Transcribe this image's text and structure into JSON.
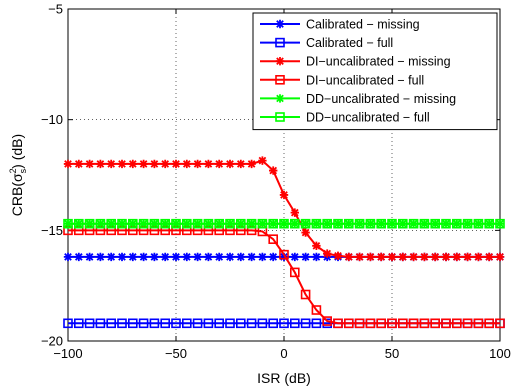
{
  "chart_data": {
    "type": "line",
    "xlabel": "ISR (dB)",
    "ylabel_main": "CRB(σ",
    "ylabel_sup": "2",
    "ylabel_sub": "s",
    "ylabel_tail": ") (dB)",
    "xlim": [
      -100,
      100
    ],
    "ylim": [
      -20,
      -5
    ],
    "xticks": [
      -100,
      -50,
      0,
      50,
      100
    ],
    "yticks": [
      -20,
      -15,
      -10,
      -5
    ],
    "xtick_labels": [
      "−100",
      "−50",
      "0",
      "50",
      "100"
    ],
    "ytick_labels": [
      "−20",
      "−15",
      "−10",
      "−5"
    ],
    "grid": true,
    "legend_position": "top-right",
    "x": [
      -100,
      -95,
      -90,
      -85,
      -80,
      -75,
      -70,
      -65,
      -60,
      -55,
      -50,
      -45,
      -40,
      -35,
      -30,
      -25,
      -20,
      -15,
      -10,
      -5,
      0,
      5,
      10,
      15,
      20,
      25,
      30,
      35,
      40,
      45,
      50,
      55,
      60,
      65,
      70,
      75,
      80,
      85,
      90,
      95,
      100
    ],
    "series": [
      {
        "name": "Calibrated − missing",
        "color": "#0000ff",
        "marker": "star",
        "values": [
          -16.2,
          -16.2,
          -16.2,
          -16.2,
          -16.2,
          -16.2,
          -16.2,
          -16.2,
          -16.2,
          -16.2,
          -16.2,
          -16.2,
          -16.2,
          -16.2,
          -16.2,
          -16.2,
          -16.2,
          -16.2,
          -16.2,
          -16.2,
          -16.2,
          -16.2,
          -16.2,
          -16.2,
          -16.2,
          -16.2,
          -16.2,
          -16.2,
          -16.2,
          -16.2,
          -16.2,
          -16.2,
          -16.2,
          -16.2,
          -16.2,
          -16.2,
          -16.2,
          -16.2,
          -16.2,
          -16.2,
          -16.2
        ]
      },
      {
        "name": "Calibrated − full",
        "color": "#0000ff",
        "marker": "square",
        "values": [
          -19.2,
          -19.2,
          -19.2,
          -19.2,
          -19.2,
          -19.2,
          -19.2,
          -19.2,
          -19.2,
          -19.2,
          -19.2,
          -19.2,
          -19.2,
          -19.2,
          -19.2,
          -19.2,
          -19.2,
          -19.2,
          -19.2,
          -19.2,
          -19.2,
          -19.2,
          -19.2,
          -19.2,
          -19.2,
          -19.2,
          -19.2,
          -19.2,
          -19.2,
          -19.2,
          -19.2,
          -19.2,
          -19.2,
          -19.2,
          -19.2,
          -19.2,
          -19.2,
          -19.2,
          -19.2,
          -19.2,
          -19.2
        ]
      },
      {
        "name": "DI−uncalibrated − missing",
        "color": "#ff0000",
        "marker": "star",
        "values": [
          -12.0,
          -12.0,
          -12.0,
          -12.0,
          -12.0,
          -12.0,
          -12.0,
          -12.0,
          -12.0,
          -12.0,
          -12.0,
          -12.0,
          -12.0,
          -12.0,
          -12.0,
          -12.0,
          -12.0,
          -12.0,
          -11.85,
          -12.3,
          -13.4,
          -14.2,
          -15.1,
          -15.7,
          -16.05,
          -16.15,
          -16.2,
          -16.2,
          -16.2,
          -16.2,
          -16.2,
          -16.2,
          -16.2,
          -16.2,
          -16.2,
          -16.2,
          -16.2,
          -16.2,
          -16.2,
          -16.2,
          -16.2
        ]
      },
      {
        "name": "DI−uncalibrated − full",
        "color": "#ff0000",
        "marker": "square",
        "values": [
          -15.0,
          -15.0,
          -15.0,
          -15.0,
          -15.0,
          -15.0,
          -15.0,
          -15.0,
          -15.0,
          -15.0,
          -15.0,
          -15.0,
          -15.0,
          -15.0,
          -15.0,
          -15.0,
          -15.0,
          -15.0,
          -15.05,
          -15.4,
          -16.1,
          -16.9,
          -17.9,
          -18.6,
          -19.1,
          -19.2,
          -19.2,
          -19.2,
          -19.2,
          -19.2,
          -19.2,
          -19.2,
          -19.2,
          -19.2,
          -19.2,
          -19.2,
          -19.2,
          -19.2,
          -19.2,
          -19.2,
          -19.2
        ]
      },
      {
        "name": "DD−uncalibrated − missing",
        "color": "#00ff00",
        "marker": "star",
        "values": [
          -14.7,
          -14.7,
          -14.7,
          -14.7,
          -14.7,
          -14.7,
          -14.7,
          -14.7,
          -14.7,
          -14.7,
          -14.7,
          -14.7,
          -14.7,
          -14.7,
          -14.7,
          -14.7,
          -14.7,
          -14.7,
          -14.7,
          -14.7,
          -14.7,
          -14.7,
          -14.7,
          -14.7,
          -14.7,
          -14.7,
          -14.7,
          -14.7,
          -14.7,
          -14.7,
          -14.7,
          -14.7,
          -14.7,
          -14.7,
          -14.7,
          -14.7,
          -14.7,
          -14.7,
          -14.7,
          -14.7,
          -14.7
        ]
      },
      {
        "name": "DD−uncalibrated − full",
        "color": "#00ff00",
        "marker": "square",
        "values": [
          -14.7,
          -14.7,
          -14.7,
          -14.7,
          -14.7,
          -14.7,
          -14.7,
          -14.7,
          -14.7,
          -14.7,
          -14.7,
          -14.7,
          -14.7,
          -14.7,
          -14.7,
          -14.7,
          -14.7,
          -14.7,
          -14.7,
          -14.7,
          -14.7,
          -14.7,
          -14.7,
          -14.7,
          -14.7,
          -14.7,
          -14.7,
          -14.7,
          -14.7,
          -14.7,
          -14.7,
          -14.7,
          -14.7,
          -14.7,
          -14.7,
          -14.7,
          -14.7,
          -14.7,
          -14.7,
          -14.7,
          -14.7
        ]
      }
    ]
  }
}
